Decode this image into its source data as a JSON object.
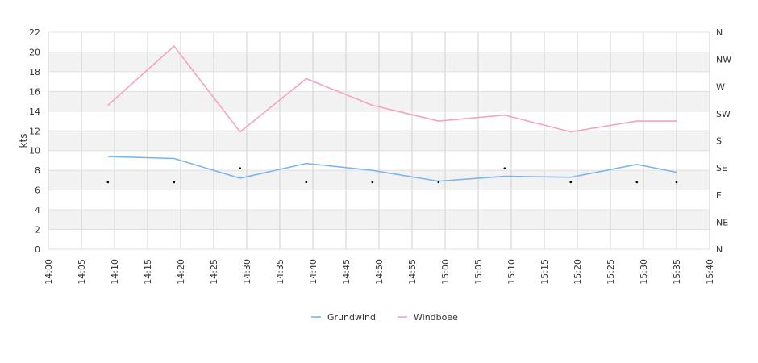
{
  "chart_data": {
    "type": "line",
    "title": "",
    "xlabel": "",
    "ylabel": "kts",
    "x_ticks": [
      "14:00",
      "14:05",
      "14:10",
      "14:15",
      "14:20",
      "14:25",
      "14:30",
      "14:35",
      "14:40",
      "14:45",
      "14:50",
      "14:55",
      "15:00",
      "15:05",
      "15:10",
      "15:15",
      "15:20",
      "15:25",
      "15:30",
      "15:35",
      "15:40"
    ],
    "x_minutes": [
      9,
      19,
      29,
      39,
      49,
      59,
      69,
      79,
      89,
      95
    ],
    "x_range_minutes": [
      0,
      100
    ],
    "y_ticks": [
      0,
      2,
      4,
      6,
      8,
      10,
      12,
      14,
      16,
      18,
      20,
      22
    ],
    "ylim": [
      0,
      22
    ],
    "y2_ticks": [
      "N",
      "NE",
      "E",
      "SE",
      "S",
      "SW",
      "W",
      "NW",
      "N"
    ],
    "series": [
      {
        "name": "Grundwind",
        "color": "#7cb5ec",
        "values": [
          9.4,
          9.2,
          7.2,
          8.7,
          8.0,
          6.9,
          7.4,
          7.3,
          8.6,
          7.8
        ]
      },
      {
        "name": "Windboee",
        "color": "#f7a1c4",
        "values": [
          14.6,
          20.6,
          11.9,
          17.3,
          14.6,
          13.0,
          13.6,
          11.9,
          13.0,
          13.0
        ]
      }
    ],
    "direction_points": [
      6.8,
      6.8,
      8.2,
      6.8,
      6.8,
      6.8,
      8.2,
      6.8,
      6.8,
      6.8
    ],
    "grid": true,
    "legend_position": "bottom-center"
  }
}
